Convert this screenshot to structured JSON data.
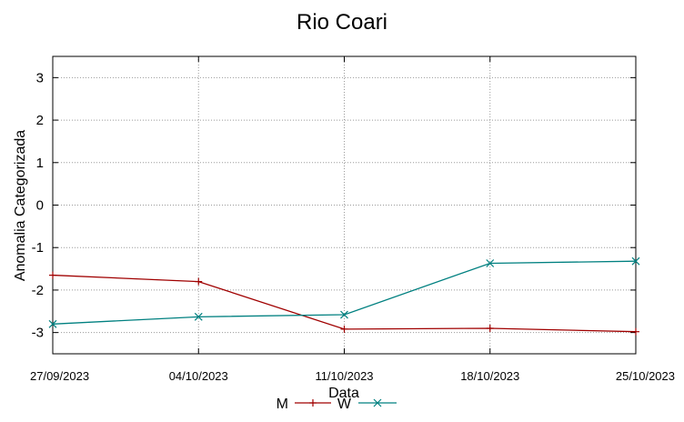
{
  "chart_data": {
    "type": "line",
    "title": "Rio Coari",
    "xlabel": "Data",
    "ylabel": "Anomalia Categorizada",
    "x": [
      "27/09/2023",
      "04/10/2023",
      "11/10/2023",
      "18/10/2023",
      "25/10/2023"
    ],
    "xticks": [
      "27/09/2023",
      "04/10/2023",
      "11/10/2023",
      "18/10/2023",
      "25/10/2023"
    ],
    "ylim": [
      -3.5,
      3.5
    ],
    "yticks": [
      "3",
      "2",
      "1",
      "0",
      "-1",
      "-2",
      "-3"
    ],
    "grid": true,
    "legend_position": "bottom",
    "series": [
      {
        "name": "M",
        "color": "#a00000",
        "marker": "plus",
        "values": [
          -1.65,
          -1.8,
          -2.92,
          -2.9,
          -2.98
        ]
      },
      {
        "name": "W",
        "color": "#008080",
        "marker": "x",
        "values": [
          -2.8,
          -2.63,
          -2.58,
          -1.37,
          -1.32
        ]
      }
    ]
  }
}
